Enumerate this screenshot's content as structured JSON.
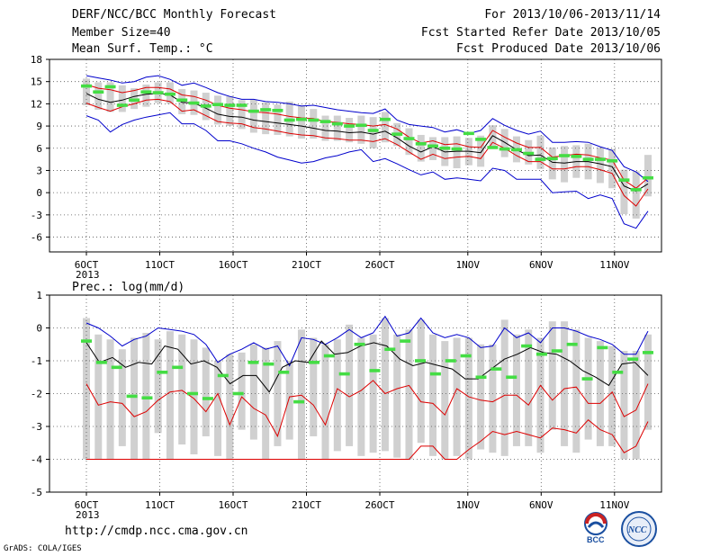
{
  "header": {
    "title": "DERF/NCC/BCC Monthly Forecast",
    "member": "Member Size=40",
    "variable": "Mean Surf. Temp.: °C",
    "period": "For 2013/10/06-2013/11/14",
    "refer": "Fcst Started Refer Date 2013/10/05",
    "produced": "Fcst Produced Date 2013/10/06"
  },
  "footer": {
    "url": "http://cmdp.ncc.cma.gov.cn",
    "grads": "GrADS: COLA/IGES",
    "logo_bcc": "BCC",
    "logo_ncc": "NCC"
  },
  "chart_data": [
    {
      "type": "line",
      "ylabel": "Mean Surf. Temp.: °C",
      "ylim": [
        -8,
        18
      ],
      "yticks": [
        -6,
        -3,
        0,
        3,
        6,
        9,
        12,
        15,
        18
      ],
      "x_tick_labels": [
        "6OCT",
        "11OCT",
        "16OCT",
        "21OCT",
        "26OCT",
        "1NOV",
        "6NOV",
        "11NOV"
      ],
      "x_year_label": "2013",
      "x_tick_days": [
        1,
        6,
        11,
        16,
        21,
        27,
        32,
        37
      ],
      "days": 38,
      "grid": true,
      "series": [
        {
          "role": "blue_upper",
          "color": "#0000cc",
          "values": [
            15.8,
            15.5,
            15.2,
            14.8,
            15.0,
            15.6,
            15.8,
            15.3,
            14.5,
            14.8,
            14.2,
            13.5,
            13.0,
            12.6,
            12.6,
            12.3,
            12.2,
            12.0,
            11.7,
            11.8,
            11.5,
            11.2,
            11.0,
            10.8,
            10.7,
            11.3,
            9.8,
            9.2,
            9.0,
            8.8,
            8.2,
            8.5,
            8.0,
            8.4,
            10.0,
            9.1,
            8.4,
            7.9,
            8.3,
            6.8,
            6.8,
            6.9,
            6.8,
            6.2,
            5.7,
            3.5,
            2.8,
            1.5
          ]
        },
        {
          "role": "red_upper",
          "color": "#dd0000",
          "values": [
            14.6,
            14.1,
            13.9,
            13.5,
            13.8,
            14.2,
            14.2,
            14.0,
            13.2,
            13.0,
            12.5,
            11.8,
            11.4,
            11.2,
            10.9,
            10.8,
            10.6,
            10.3,
            10.1,
            10.0,
            9.6,
            9.5,
            9.3,
            9.2,
            9.0,
            9.2,
            8.6,
            7.5,
            6.7,
            7.0,
            6.5,
            6.6,
            6.2,
            6.1,
            8.4,
            7.5,
            6.7,
            6.1,
            6.1,
            4.8,
            5.0,
            5.2,
            5.1,
            4.7,
            4.4,
            1.7,
            0.6,
            2.0
          ]
        },
        {
          "role": "mean",
          "color": "#000000",
          "values": [
            13.4,
            12.6,
            12.2,
            12.5,
            13.0,
            13.3,
            13.4,
            13.2,
            12.2,
            12.1,
            11.4,
            10.6,
            10.3,
            10.2,
            9.8,
            9.6,
            9.4,
            9.2,
            9.0,
            8.7,
            8.4,
            8.3,
            8.1,
            8.2,
            7.9,
            8.3,
            7.4,
            6.3,
            5.5,
            6.2,
            5.5,
            5.6,
            5.6,
            5.4,
            7.7,
            6.8,
            5.8,
            5.0,
            5.1,
            4.1,
            4.0,
            4.2,
            4.2,
            3.9,
            3.5,
            0.9,
            0.2,
            1.2
          ]
        },
        {
          "role": "red_lower",
          "color": "#dd0000",
          "values": [
            12.1,
            11.5,
            11.0,
            11.6,
            12.0,
            12.5,
            12.6,
            12.3,
            11.0,
            11.2,
            10.4,
            9.6,
            9.4,
            9.3,
            8.8,
            8.6,
            8.3,
            8.0,
            7.8,
            7.7,
            7.4,
            7.3,
            7.1,
            7.1,
            6.9,
            7.3,
            6.5,
            5.5,
            4.5,
            5.2,
            4.6,
            4.8,
            4.9,
            4.6,
            6.8,
            6.0,
            5.0,
            4.2,
            4.2,
            3.2,
            3.2,
            3.5,
            3.5,
            3.1,
            2.6,
            -0.4,
            -1.8,
            0.5
          ]
        },
        {
          "role": "blue_lower",
          "color": "#0000cc",
          "values": [
            10.4,
            9.8,
            8.2,
            9.2,
            9.8,
            10.2,
            10.5,
            10.8,
            9.3,
            9.3,
            8.4,
            7.0,
            7.0,
            6.6,
            6.0,
            5.5,
            4.8,
            4.4,
            4.0,
            4.2,
            4.7,
            5.0,
            5.5,
            5.8,
            4.2,
            4.6,
            3.9,
            3.1,
            2.4,
            2.8,
            1.8,
            2.0,
            1.8,
            1.6,
            3.3,
            3.0,
            1.8,
            1.8,
            1.8,
            0.0,
            0.1,
            0.2,
            -0.8,
            -0.3,
            -0.8,
            -4.2,
            -4.8,
            -2.5
          ]
        },
        {
          "role": "observed",
          "color": "#44dd44",
          "values": [
            14.4,
            13.6,
            14.3,
            11.8,
            12.5,
            13.6,
            13.5,
            13.3,
            12.5,
            12.1,
            11.7,
            11.9,
            11.8,
            11.8,
            11.0,
            11.2,
            11.1,
            9.8,
            9.9,
            9.8,
            9.6,
            9.3,
            9.0,
            9.1,
            8.4,
            9.9,
            7.9,
            7.3,
            6.6,
            6.3,
            6.0,
            5.9,
            8.0,
            7.2,
            6.1,
            5.9,
            5.8,
            5.3,
            4.5,
            4.6,
            5.0,
            4.9,
            4.5,
            4.5,
            4.3,
            1.7,
            0.4,
            2.0
          ]
        }
      ],
      "boxes": {
        "color": "#d0d0d0",
        "low": [
          11.8,
          11.2,
          10.9,
          10.9,
          11.3,
          11.6,
          12.1,
          12.0,
          10.6,
          10.5,
          9.8,
          9.2,
          9.0,
          8.6,
          8.1,
          7.9,
          7.8,
          7.6,
          7.3,
          7.3,
          7.0,
          7.0,
          6.8,
          6.6,
          6.0,
          6.8,
          6.3,
          5.1,
          4.2,
          4.4,
          3.6,
          3.3,
          3.7,
          3.5,
          6.0,
          4.8,
          4.1,
          3.8,
          3.2,
          1.8,
          1.4,
          2.0,
          1.8,
          1.3,
          0.6,
          -2.9,
          -3.5,
          -0.5
        ],
        "high": [
          15.4,
          14.9,
          14.9,
          14.5,
          14.1,
          14.6,
          14.9,
          14.9,
          14.0,
          13.8,
          13.5,
          13.1,
          13.0,
          12.5,
          12.6,
          12.2,
          11.9,
          12.3,
          11.8,
          11.3,
          10.4,
          10.4,
          10.1,
          10.4,
          10.2,
          10.9,
          9.4,
          8.7,
          7.8,
          7.5,
          7.5,
          7.6,
          7.4,
          7.7,
          9.1,
          8.6,
          7.6,
          7.1,
          7.7,
          6.1,
          6.3,
          6.4,
          6.6,
          6.1,
          5.9,
          3.1,
          2.9,
          5.1
        ]
      }
    },
    {
      "type": "line",
      "ylabel": "Prec.: log(mm/d)",
      "ylim": [
        -5,
        1
      ],
      "yticks": [
        -5,
        -4,
        -3,
        -2,
        -1,
        0,
        1
      ],
      "x_tick_labels": [
        "6OCT",
        "11OCT",
        "16OCT",
        "21OCT",
        "26OCT",
        "1NOV",
        "6NOV",
        "11NOV"
      ],
      "x_year_label": "2013",
      "x_tick_days": [
        1,
        6,
        11,
        16,
        21,
        27,
        32,
        37
      ],
      "days": 38,
      "grid": true,
      "series": [
        {
          "role": "blue_upper",
          "color": "#0000cc",
          "values": [
            0.15,
            -0.0,
            -0.25,
            -0.55,
            -0.35,
            -0.25,
            -0.0,
            -0.05,
            -0.1,
            -0.2,
            -0.5,
            -1.05,
            -0.8,
            -0.65,
            -0.45,
            -0.65,
            -0.55,
            -1.15,
            -0.3,
            -0.35,
            -0.5,
            -0.3,
            -0.05,
            -0.3,
            -0.15,
            0.35,
            -0.25,
            -0.15,
            0.3,
            -0.15,
            -0.3,
            -0.2,
            -0.3,
            -0.6,
            -0.55,
            0.0,
            -0.3,
            -0.15,
            -0.45,
            0.0,
            0.0,
            -0.1,
            -0.25,
            -0.35,
            -0.5,
            -0.8,
            -0.8,
            -0.1
          ]
        },
        {
          "role": "mean",
          "color": "#000000",
          "values": [
            -0.45,
            -1.05,
            -0.9,
            -1.2,
            -1.05,
            -1.1,
            -0.55,
            -0.65,
            -1.1,
            -1.0,
            -1.2,
            -1.7,
            -1.45,
            -1.45,
            -1.95,
            -1.2,
            -1.0,
            -1.05,
            -0.4,
            -0.8,
            -0.75,
            -0.55,
            -0.45,
            -0.55,
            -0.95,
            -1.15,
            -1.05,
            -1.15,
            -1.25,
            -1.55,
            -1.55,
            -1.25,
            -0.95,
            -0.8,
            -0.6,
            -0.75,
            -0.8,
            -1.0,
            -1.3,
            -1.5,
            -1.75,
            -1.1,
            -1.05,
            -1.45
          ]
        },
        {
          "role": "red_upper",
          "color": "#dd0000",
          "values": [
            -1.7,
            -2.35,
            -2.25,
            -2.3,
            -2.7,
            -2.55,
            -2.2,
            -1.95,
            -1.9,
            -2.15,
            -2.55,
            -2.0,
            -2.95,
            -2.1,
            -2.45,
            -2.65,
            -3.3,
            -2.1,
            -2.05,
            -2.35,
            -2.95,
            -1.85,
            -2.1,
            -1.9,
            -1.6,
            -2.0,
            -1.85,
            -1.75,
            -2.25,
            -2.3,
            -2.65,
            -1.85,
            -2.1,
            -2.2,
            -2.25,
            -2.05,
            -2.05,
            -2.35,
            -1.75,
            -2.2,
            -1.85,
            -1.8,
            -2.3,
            -2.3,
            -1.95,
            -2.7,
            -2.5,
            -1.7
          ]
        },
        {
          "role": "red_lower",
          "color": "#dd0000",
          "values": [
            -4.0,
            -4.0,
            -4.0,
            -4.0,
            -4.0,
            -4.0,
            -4.0,
            -4.0,
            -4.0,
            -4.0,
            -4.0,
            -4.0,
            -4.0,
            -4.0,
            -4.0,
            -4.0,
            -4.0,
            -4.0,
            -4.0,
            -4.0,
            -4.0,
            -4.0,
            -4.0,
            -4.0,
            -4.0,
            -4.0,
            -4.0,
            -4.0,
            -3.6,
            -3.6,
            -4.0,
            -4.0,
            -3.7,
            -3.45,
            -3.15,
            -3.25,
            -3.15,
            -3.25,
            -3.35,
            -3.05,
            -3.1,
            -3.2,
            -2.8,
            -3.1,
            -3.25,
            -3.8,
            -3.6,
            -2.85
          ]
        },
        {
          "role": "observed",
          "color": "#44dd44",
          "values": [
            -0.4,
            -1.05,
            -1.2,
            -2.08,
            -2.13,
            -1.35,
            -1.2,
            -2.0,
            -2.15,
            -1.45,
            -2.0,
            -1.05,
            -1.1,
            -1.35,
            -2.25,
            -1.05,
            -0.85,
            -1.4,
            -0.5,
            -1.3,
            -0.65,
            -0.4,
            -1.0,
            -1.4,
            -1.0,
            -0.85,
            -1.5,
            -1.25,
            -1.5,
            -0.55,
            -0.8,
            -0.7,
            -0.5,
            -1.55,
            -0.6,
            -1.35,
            -0.95,
            -0.75
          ]
        }
      ],
      "boxes": {
        "color": "#d0d0d0",
        "low": [
          -4.0,
          -4.0,
          -4.0,
          -3.6,
          -4.0,
          -4.0,
          -3.2,
          -4.0,
          -3.55,
          -3.85,
          -3.3,
          -3.9,
          -4.0,
          -3.1,
          -3.4,
          -4.0,
          -3.6,
          -3.4,
          -4.0,
          -3.3,
          -4.0,
          -3.75,
          -3.6,
          -3.9,
          -3.8,
          -3.75,
          -3.95,
          -4.0,
          -3.5,
          -3.9,
          -4.0,
          -3.9,
          -4.0,
          -3.7,
          -3.8,
          -3.9,
          -3.6,
          -3.6,
          -3.8,
          -3.1,
          -3.6,
          -3.8,
          -3.4,
          -3.6,
          -3.6,
          -4.0,
          -4.0,
          -3.1
        ],
        "high": [
          0.3,
          -0.2,
          -0.35,
          -0.65,
          -0.3,
          -0.15,
          -0.35,
          -0.1,
          -0.2,
          -0.35,
          -0.6,
          -1.0,
          -0.8,
          -0.75,
          -0.5,
          -0.6,
          -0.4,
          -1.0,
          -0.05,
          -0.3,
          -0.5,
          -0.35,
          0.1,
          -0.3,
          -0.2,
          0.3,
          -0.2,
          -0.05,
          0.25,
          -0.2,
          -0.4,
          -0.3,
          -0.3,
          -0.5,
          -0.5,
          0.25,
          -0.2,
          -0.05,
          -0.3,
          0.2,
          0.2,
          -0.05,
          -0.3,
          -0.4,
          -0.55,
          -0.7,
          -0.7,
          -0.2
        ]
      }
    }
  ]
}
